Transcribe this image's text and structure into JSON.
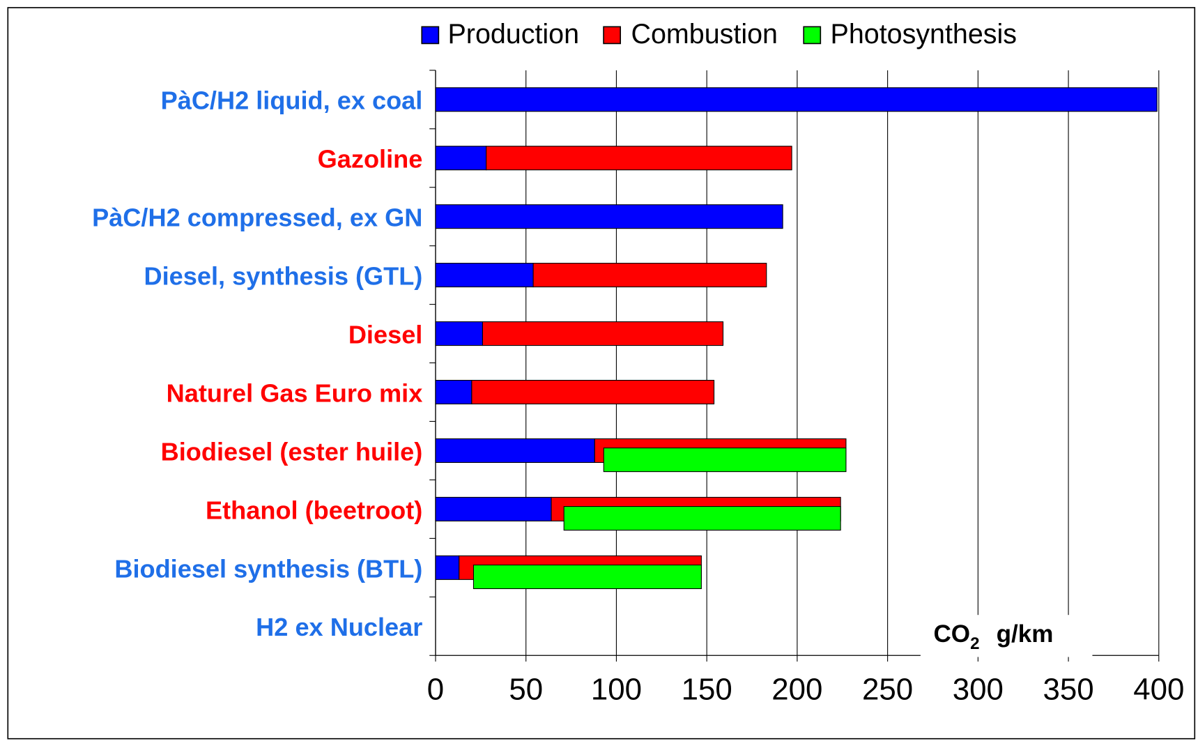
{
  "chart_data": {
    "type": "bar",
    "orientation": "horizontal",
    "stacked": true,
    "categories": [
      "PàC/H2 liquid, ex coal",
      "Gazoline",
      "PàC/H2 compressed, ex GN",
      "Diesel, synthesis (GTL)",
      "Diesel",
      "Naturel Gas Euro mix",
      "Biodiesel (ester huile)",
      "Ethanol (beetroot)",
      "Biodiesel  synthesis (BTL)",
      "H2 ex Nuclear"
    ],
    "label_colors": [
      "#1f6fe8",
      "#ff0000",
      "#1f6fe8",
      "#1f6fe8",
      "#ff0000",
      "#ff0000",
      "#ff0000",
      "#ff0000",
      "#1f6fe8",
      "#1f6fe8"
    ],
    "series": [
      {
        "name": "Production",
        "color": "#0000ff",
        "values": [
          399,
          28,
          192,
          54,
          26,
          20,
          88,
          64,
          13,
          null
        ]
      },
      {
        "name": "Combustion",
        "color": "#ff0000",
        "values": [
          null,
          169,
          null,
          129,
          133,
          134,
          139,
          160,
          134,
          null
        ]
      },
      {
        "name": "Photosynthesis",
        "color": "#00ff00",
        "values": [
          null,
          null,
          null,
          null,
          null,
          null,
          134,
          153,
          126,
          null
        ]
      }
    ],
    "xlim": [
      0,
      400
    ],
    "xticks": [
      0,
      50,
      100,
      150,
      200,
      250,
      300,
      350,
      400
    ],
    "grid": true,
    "legend": "top",
    "annotation": [
      "CO",
      "2",
      "g/km"
    ]
  }
}
